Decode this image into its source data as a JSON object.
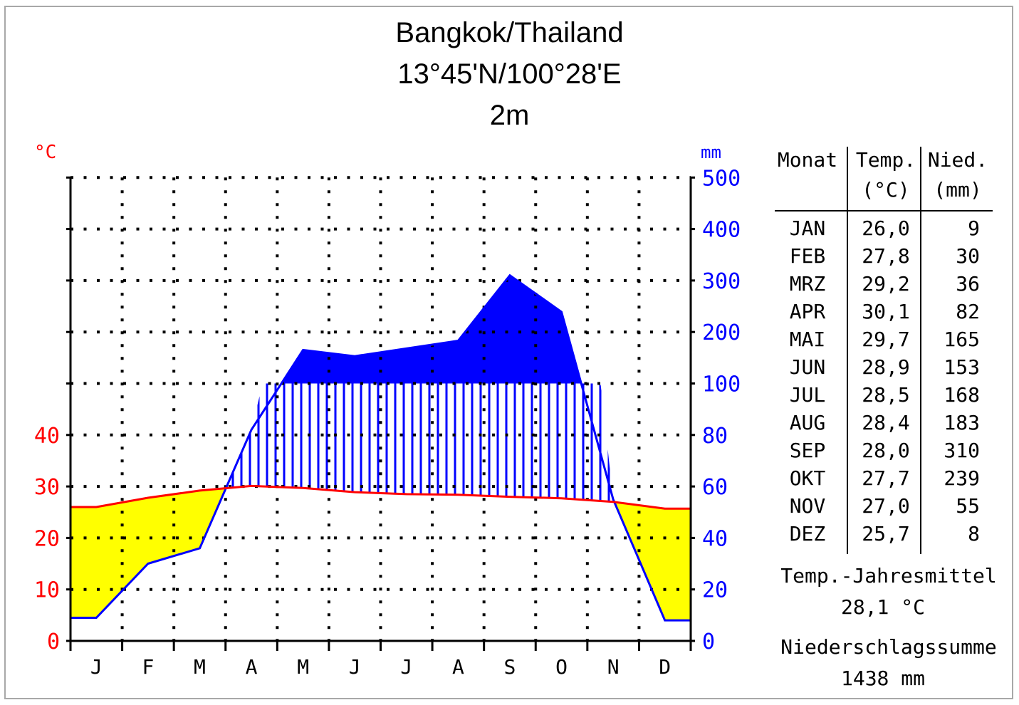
{
  "header": {
    "title": "Bangkok/Thailand",
    "coordinates": "13°45'N/100°28'E",
    "elevation": "2m"
  },
  "chart_data": {
    "type": "climate-diagram",
    "months": [
      "J",
      "F",
      "M",
      "A",
      "M",
      "J",
      "J",
      "A",
      "S",
      "O",
      "N",
      "D"
    ],
    "temperature": {
      "unit_label": "°C",
      "color": "#ff0000",
      "values": [
        26.0,
        27.8,
        29.2,
        30.1,
        29.7,
        28.9,
        28.5,
        28.4,
        28.0,
        27.7,
        27.0,
        25.7
      ],
      "ticks": [
        "0",
        "10",
        "20",
        "30",
        "40"
      ],
      "ylim": [
        0,
        40
      ]
    },
    "precipitation": {
      "unit_label": "mm",
      "color": "#0000ff",
      "values": [
        9,
        30,
        36,
        82,
        165,
        153,
        168,
        183,
        310,
        239,
        55,
        8
      ],
      "ticks": [
        "0",
        "20",
        "40",
        "60",
        "80",
        "100",
        "200",
        "300",
        "400",
        "500"
      ],
      "scale_note": "0-100 mm scale 20 mm per step, above 100 mm compressed 100 mm per step"
    },
    "colors": {
      "arid": "#ffff00",
      "humid_hatch": "#0000ff",
      "perhumid": "#0000ff",
      "axis": "#000000"
    },
    "grid": true
  },
  "table": {
    "headers": [
      {
        "line1": "Monat",
        "line2": ""
      },
      {
        "line1": "Temp.",
        "line2": "(°C)"
      },
      {
        "line1": "Nied.",
        "line2": "(mm)"
      }
    ],
    "rows": [
      {
        "month": "JAN",
        "temp": "26,0",
        "precip": "9"
      },
      {
        "month": "FEB",
        "temp": "27,8",
        "precip": "30"
      },
      {
        "month": "MRZ",
        "temp": "29,2",
        "precip": "36"
      },
      {
        "month": "APR",
        "temp": "30,1",
        "precip": "82"
      },
      {
        "month": "MAI",
        "temp": "29,7",
        "precip": "165"
      },
      {
        "month": "JUN",
        "temp": "28,9",
        "precip": "153"
      },
      {
        "month": "JUL",
        "temp": "28,5",
        "precip": "168"
      },
      {
        "month": "AUG",
        "temp": "28,4",
        "precip": "183"
      },
      {
        "month": "SEP",
        "temp": "28,0",
        "precip": "310"
      },
      {
        "month": "OKT",
        "temp": "27,7",
        "precip": "239"
      },
      {
        "month": "NOV",
        "temp": "27,0",
        "precip": "55"
      },
      {
        "month": "DEZ",
        "temp": "25,7",
        "precip": "8"
      }
    ],
    "annual_temp_label": "Temp.-Jahresmittel",
    "annual_temp_value": "28,1 °C",
    "annual_precip_label": "Niederschlagssumme",
    "annual_precip_value": "1438 mm"
  }
}
